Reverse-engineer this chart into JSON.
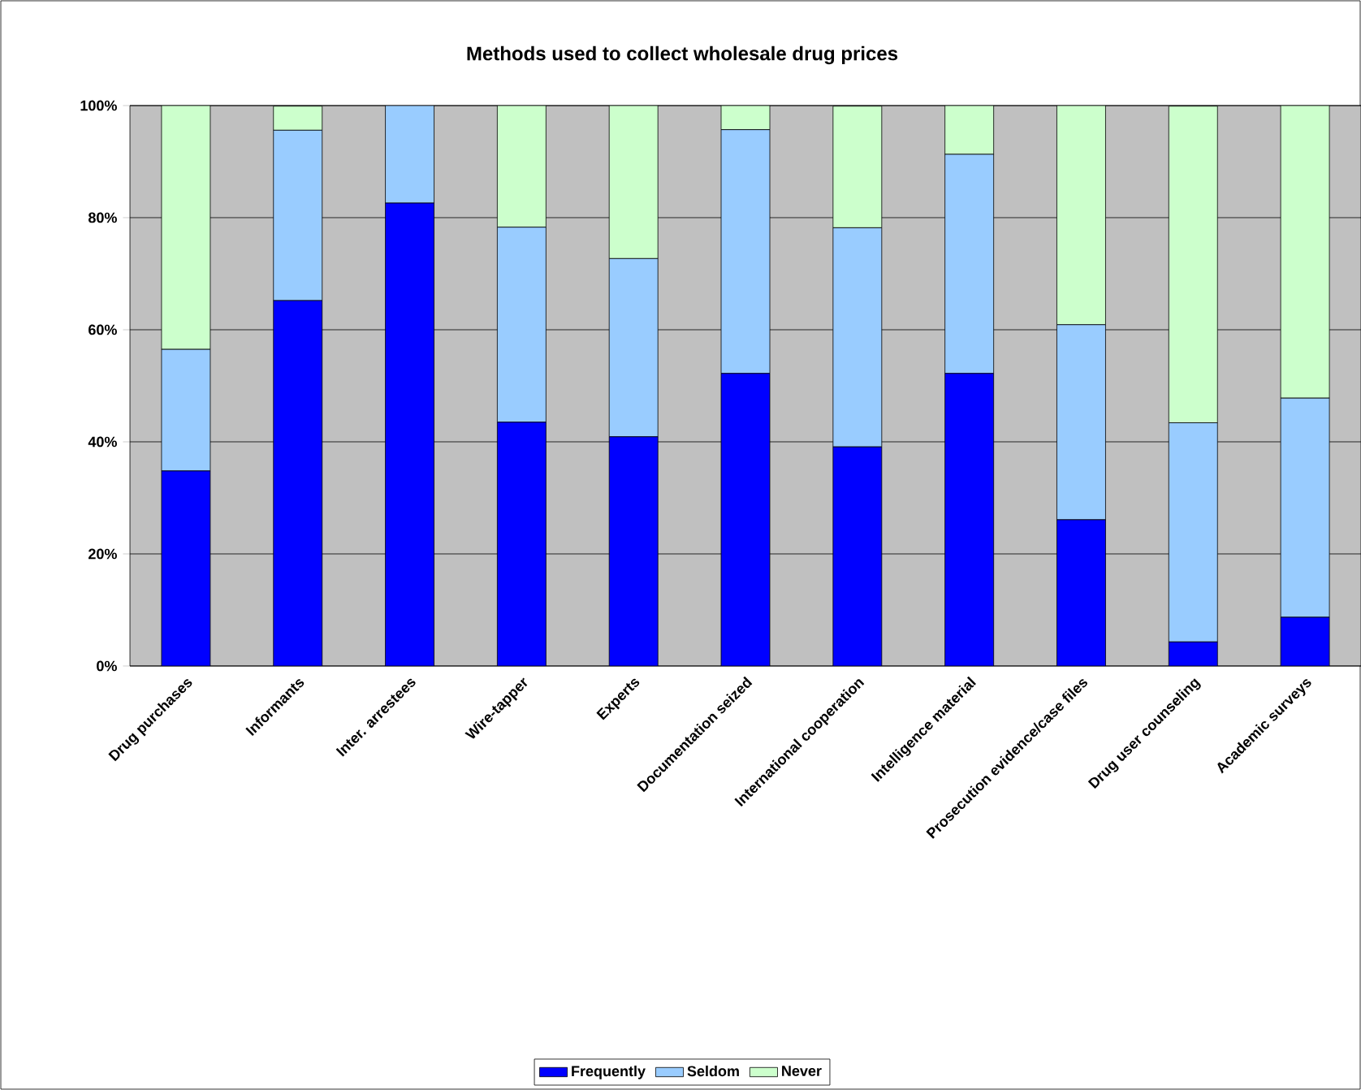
{
  "chart_data": {
    "type": "bar",
    "stacked": true,
    "title": "Methods used to collect wholesale drug prices",
    "categories": [
      "Drug purchases",
      "Informants",
      "Inter. arrestees",
      "Wire-tapper",
      "Experts",
      "Documentation seized",
      "International cooperation",
      "Intelligence material",
      "Prosecution evidence/case files",
      "Drug user counseling",
      "Academic surveys"
    ],
    "series": [
      {
        "name": "Frequently",
        "color": "#0000ff",
        "values": [
          34.8,
          65.2,
          82.6,
          43.5,
          40.9,
          52.2,
          39.1,
          52.2,
          26.1,
          4.3,
          8.7
        ]
      },
      {
        "name": "Seldom",
        "color": "#99ccff",
        "values": [
          21.7,
          30.4,
          17.4,
          34.8,
          31.8,
          43.5,
          39.1,
          39.1,
          34.8,
          39.1,
          39.1
        ]
      },
      {
        "name": "Never",
        "color": "#ccffcc",
        "values": [
          43.5,
          4.3,
          0,
          21.7,
          27.3,
          4.3,
          21.7,
          8.7,
          39.1,
          56.5,
          52.2
        ]
      }
    ],
    "ylim": [
      0,
      100
    ],
    "yticks": [
      {
        "value": 0,
        "label": "0%"
      },
      {
        "value": 20,
        "label": "20%"
      },
      {
        "value": 40,
        "label": "40%"
      },
      {
        "value": 60,
        "label": "60%"
      },
      {
        "value": 80,
        "label": "80%"
      },
      {
        "value": 100,
        "label": "100%"
      }
    ],
    "grid": "y",
    "legend": "bottom"
  }
}
